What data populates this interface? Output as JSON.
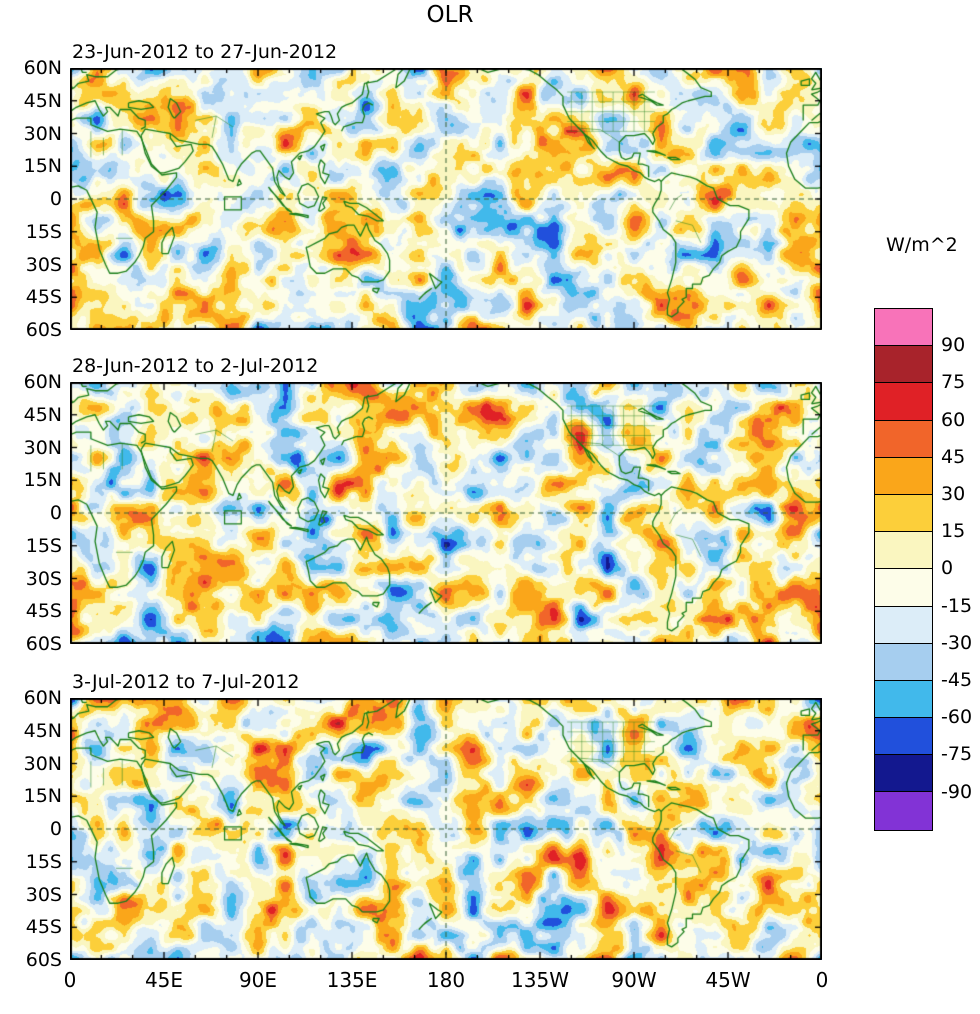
{
  "title": "OLR",
  "units_label": "W/m^2",
  "panels": [
    {
      "label": "23-Jun-2012 to 27-Jun-2012"
    },
    {
      "label": "28-Jun-2012 to 2-Jul-2012"
    },
    {
      "label": "3-Jul-2012 to 7-Jul-2012"
    }
  ],
  "y_tick_labels": [
    "60N",
    "45N",
    "30N",
    "15N",
    "0",
    "15S",
    "30S",
    "45S",
    "60S"
  ],
  "x_tick_labels": [
    "0",
    "45E",
    "90E",
    "135E",
    "180",
    "135W",
    "90W",
    "45W",
    "0"
  ],
  "colorbar": {
    "units": "W/m^2",
    "tick_labels": [
      "90",
      "75",
      "60",
      "45",
      "30",
      "15",
      "0",
      "-15",
      "-30",
      "-45",
      "-60",
      "-75",
      "-90"
    ],
    "colors_top_to_bottom": [
      "#F873B9",
      "#A8232B",
      "#E02126",
      "#F1652A",
      "#FAA61A",
      "#FCCF3A",
      "#FAF6C0",
      "#FDFDE9",
      "#DCEDF8",
      "#A6CEEF",
      "#41B9EB",
      "#2150DC",
      "#13188F",
      "#8233D6"
    ]
  },
  "chart_data": {
    "type": "heatmap",
    "subtype": "filled-contour-anomaly-map-panels",
    "title": "OLR",
    "units": "W/m^2",
    "panels": [
      {
        "period": "23-Jun-2012 to 27-Jun-2012"
      },
      {
        "period": "28-Jun-2012 to 2-Jul-2012"
      },
      {
        "period": "3-Jul-2012 to 7-Jul-2012"
      }
    ],
    "lon_range_deg": [
      0,
      360
    ],
    "lat_range_deg": [
      -60,
      60
    ],
    "x_tick_labels": [
      "0",
      "45E",
      "90E",
      "135E",
      "180",
      "135W",
      "90W",
      "45W",
      "0"
    ],
    "y_tick_labels": [
      "60N",
      "45N",
      "30N",
      "15N",
      "0",
      "15S",
      "30S",
      "45S",
      "60S"
    ],
    "contour_levels": [
      -90,
      -75,
      -60,
      -45,
      -30,
      -15,
      0,
      15,
      30,
      45,
      60,
      75,
      90
    ],
    "palette_low_to_high": [
      "#8233D6",
      "#13188F",
      "#2150DC",
      "#41B9EB",
      "#A6CEEF",
      "#DCEDF8",
      "#FDFDE9",
      "#FAF6C0",
      "#FCCF3A",
      "#FAA61A",
      "#F1652A",
      "#E02126",
      "#A8232B",
      "#F873B9"
    ],
    "coastline_color": "#1A7F1A",
    "equator_line": "dashed at 0 latitude",
    "dateline_line": "dashed at 180 longitude",
    "roi_box": {
      "lon": [
        74,
        82
      ],
      "lat": [
        -5,
        1
      ]
    },
    "legend_position": "right"
  }
}
